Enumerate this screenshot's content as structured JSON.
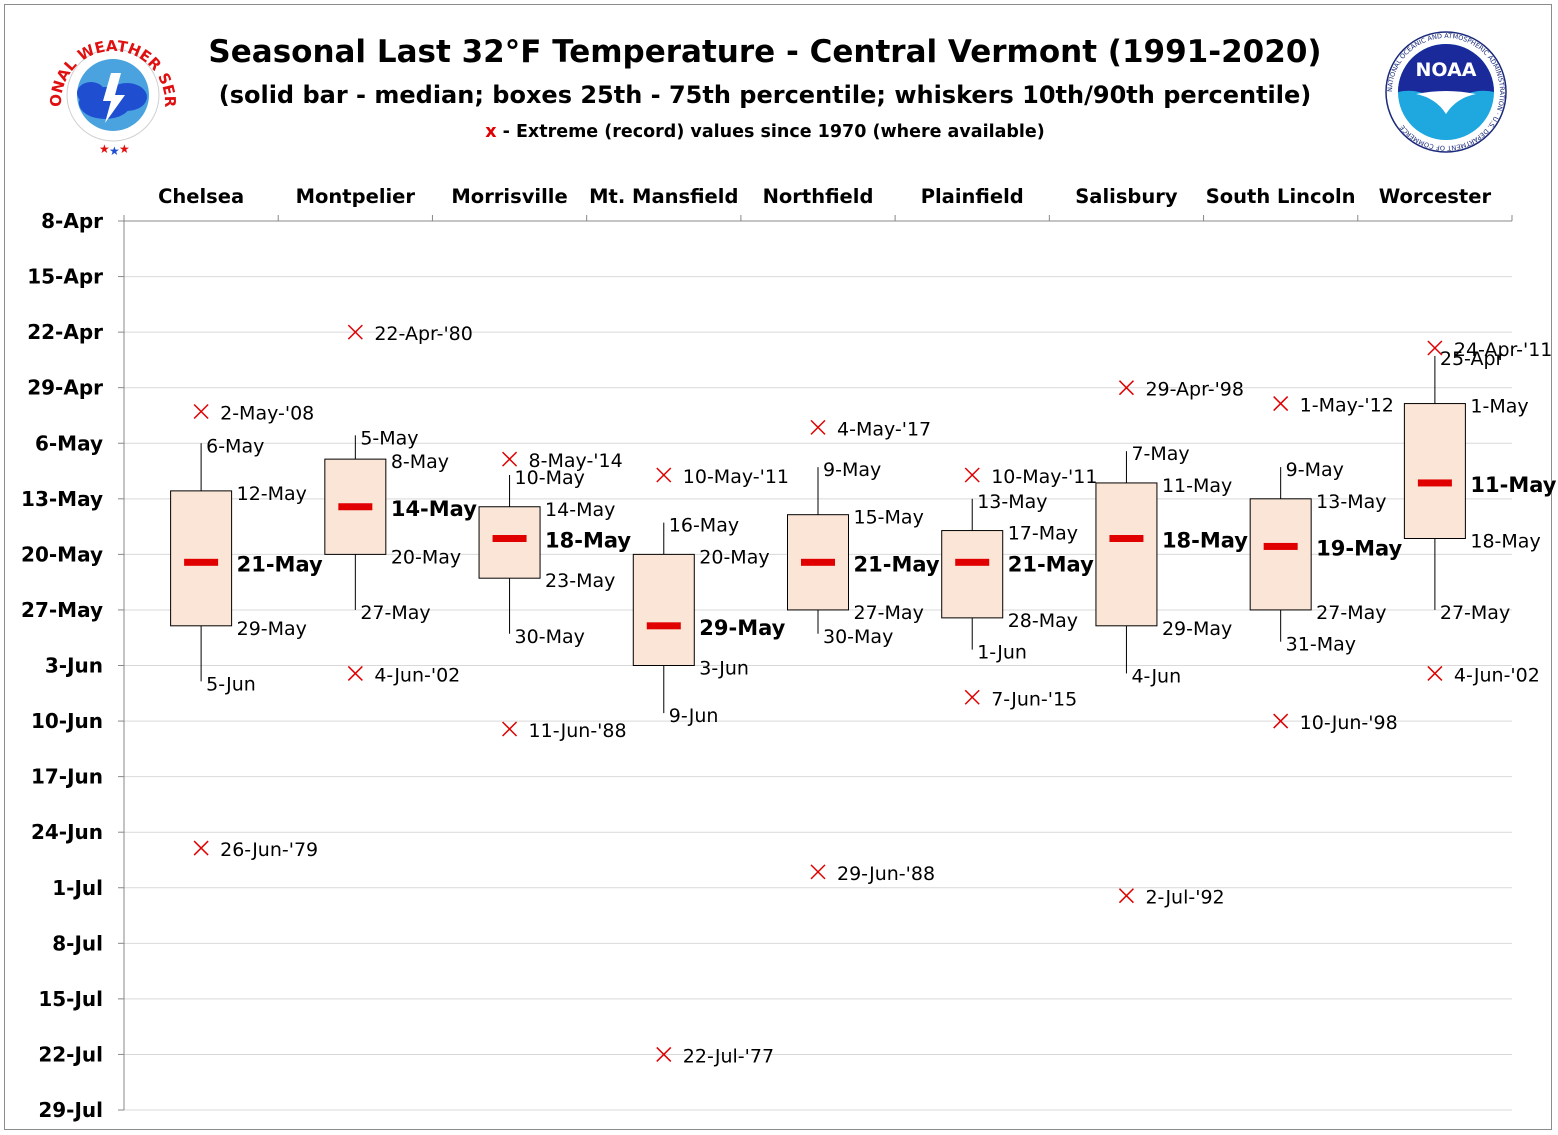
{
  "header": {
    "title": "Seasonal Last 32°F Temperature - Central Vermont (1991-2020)",
    "subtitle": "(solid bar - median; boxes 25th - 75th percentile; whiskers 10th/90th percentile)",
    "legend_marker": "x",
    "legend_text": " - Extreme (record) values since 1970 (where available)"
  },
  "logos": {
    "nws": {
      "text": "NATIONAL WEATHER SERVICE"
    },
    "noaa": {
      "text": "NOAA",
      "ring_text": "NATIONAL OCEANIC AND ATMOSPHERIC ADMINISTRATION · U.S. DEPARTMENT OF COMMERCE"
    }
  },
  "colors": {
    "box_fill": "#fbe5d6",
    "median": "#e00000",
    "extreme_marker": "#e00000",
    "axis": "#888888",
    "grid": "#d9d9d9"
  },
  "chart_data": {
    "type": "box",
    "y_axis_ticks": [
      "8-Apr",
      "15-Apr",
      "22-Apr",
      "29-Apr",
      "6-May",
      "13-May",
      "20-May",
      "27-May",
      "3-Jun",
      "10-Jun",
      "17-Jun",
      "24-Jun",
      "1-Jul",
      "8-Jul",
      "15-Jul",
      "22-Jul",
      "29-Jul"
    ],
    "y_axis_reversed": true,
    "y_range": [
      "8-Apr",
      "29-Jul"
    ],
    "stations": [
      {
        "name": "Chelsea",
        "p10": "6-May",
        "p25": "12-May",
        "median": "21-May",
        "p75": "29-May",
        "p90": "5-Jun",
        "extremes": [
          {
            "date": "2-May",
            "label": "2-May-'08"
          },
          {
            "date": "26-Jun",
            "label": "26-Jun-'79"
          }
        ]
      },
      {
        "name": "Montpelier",
        "p10": "5-May",
        "p25": "8-May",
        "median": "14-May",
        "p75": "20-May",
        "p90": "27-May",
        "extremes": [
          {
            "date": "22-Apr",
            "label": "22-Apr-'80"
          },
          {
            "date": "4-Jun",
            "label": "4-Jun-'02"
          }
        ]
      },
      {
        "name": "Morrisville",
        "p10": "10-May",
        "p25": "14-May",
        "median": "18-May",
        "p75": "23-May",
        "p90": "30-May",
        "extremes": [
          {
            "date": "8-May",
            "label": "8-May-'14"
          },
          {
            "date": "11-Jun",
            "label": "11-Jun-'88"
          }
        ]
      },
      {
        "name": "Mt. Mansfield",
        "p10": "16-May",
        "p25": "20-May",
        "median": "29-May",
        "p75": "3-Jun",
        "p90": "9-Jun",
        "extremes": [
          {
            "date": "10-May",
            "label": "10-May-'11"
          },
          {
            "date": "22-Jul",
            "label": "22-Jul-'77"
          }
        ]
      },
      {
        "name": "Northfield",
        "p10": "9-May",
        "p25": "15-May",
        "median": "21-May",
        "p75": "27-May",
        "p90": "30-May",
        "extremes": [
          {
            "date": "4-May",
            "label": "4-May-'17"
          },
          {
            "date": "29-Jun",
            "label": "29-Jun-'88"
          }
        ]
      },
      {
        "name": "Plainfield",
        "p10": "13-May",
        "p25": "17-May",
        "median": "21-May",
        "p75": "28-May",
        "p90": "1-Jun",
        "extremes": [
          {
            "date": "10-May",
            "label": "10-May-'11"
          },
          {
            "date": "7-Jun",
            "label": "7-Jun-'15"
          }
        ]
      },
      {
        "name": "Salisbury",
        "p10": "7-May",
        "p25": "11-May",
        "median": "18-May",
        "p75": "29-May",
        "p90": "4-Jun",
        "extremes": [
          {
            "date": "29-Apr",
            "label": "29-Apr-'98"
          },
          {
            "date": "2-Jul",
            "label": "2-Jul-'92"
          }
        ]
      },
      {
        "name": "South Lincoln",
        "p10": "9-May",
        "p25": "13-May",
        "median": "19-May",
        "p75": "27-May",
        "p90": "31-May",
        "extremes": [
          {
            "date": "1-May",
            "label": "1-May-'12"
          },
          {
            "date": "10-Jun",
            "label": "10-Jun-'98"
          }
        ]
      },
      {
        "name": "Worcester",
        "p10": "25-Apr",
        "p25": "1-May",
        "median": "11-May",
        "p75": "18-May",
        "p90": "27-May",
        "extremes": [
          {
            "date": "24-Apr",
            "label": "24-Apr-'11"
          },
          {
            "date": "4-Jun",
            "label": "4-Jun-'02"
          }
        ]
      }
    ]
  }
}
